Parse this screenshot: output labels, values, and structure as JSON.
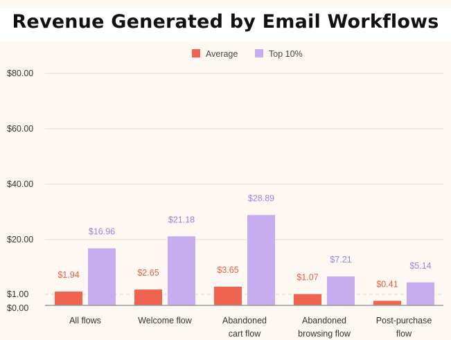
{
  "chart_data": {
    "type": "bar",
    "title": "Revenue Generated by Email Workflows",
    "categories": [
      [
        "All flows"
      ],
      [
        "Welcome flow"
      ],
      [
        "Abandoned",
        "cart flow"
      ],
      [
        "Abandoned",
        "browsing flow"
      ],
      [
        "Post-purchase",
        "flow"
      ]
    ],
    "series": [
      {
        "name": "Average",
        "color": "#ef6350",
        "values": [
          1.94,
          2.65,
          3.65,
          1.07,
          0.41
        ],
        "labels": [
          "$1.94",
          "$2.65",
          "$3.65",
          "$1.07",
          "$0.41"
        ]
      },
      {
        "name": "Top 10%",
        "color": "#c7adef",
        "values": [
          16.96,
          21.18,
          28.89,
          7.21,
          5.14
        ],
        "labels": [
          "$16.96",
          "$21.18",
          "$28.89",
          "$7.21",
          "$5.14"
        ]
      }
    ],
    "yticks": [
      0,
      1,
      20,
      40,
      60,
      80
    ],
    "ytick_labels": [
      "$0.00",
      "$1.00",
      "$20.00",
      "$40.00",
      "$60.00",
      "$80.00"
    ],
    "ylim": [
      0,
      80
    ],
    "reference_line": 1,
    "grid": true,
    "legend": "top-center",
    "label_colors": {
      "Average": "#ef5a44",
      "Top 10%": "#a07fd8"
    }
  }
}
